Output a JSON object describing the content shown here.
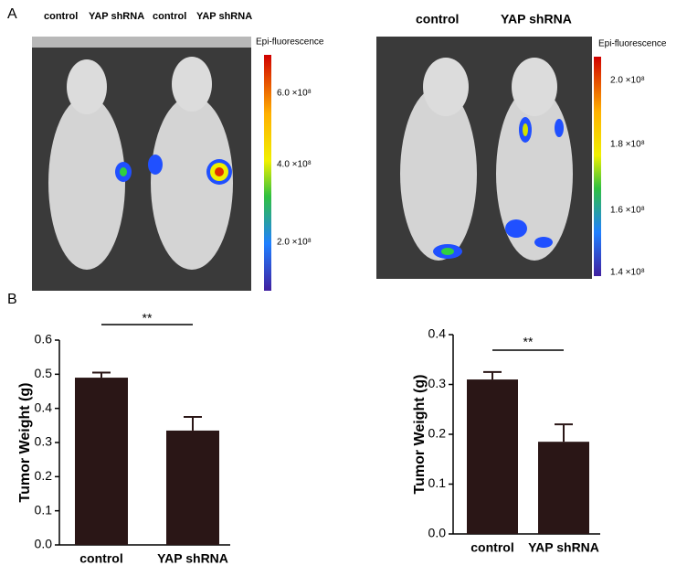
{
  "panel_labels": [
    "A",
    "B"
  ],
  "images": [
    {
      "labels": [
        "control",
        "YAP shRNA",
        "control",
        "YAP shRNA"
      ],
      "colorbar_title": "Epi-fluorescence",
      "colorbar_ticks": [
        "6.0 ×10⁸",
        "4.0 ×10⁸",
        "2.0 ×10⁸"
      ]
    },
    {
      "labels": [
        "control",
        "YAP shRNA"
      ],
      "colorbar_title": "Epi-fluorescence",
      "colorbar_ticks": [
        "2.0 ×10⁸",
        "1.8 ×10⁸",
        "1.6 ×10⁸",
        "1.4 ×10⁸"
      ]
    }
  ],
  "chart_data": [
    {
      "type": "bar",
      "ylabel": "Tumor Weight (g)",
      "annotation": "**",
      "categories": [
        "control",
        "YAP shRNA"
      ],
      "values": [
        0.49,
        0.335
      ],
      "errors": [
        0.015,
        0.04
      ],
      "color": "#2a1616",
      "ylim": [
        0,
        0.6
      ],
      "yticks": [
        {
          "value": 0,
          "label": "0.0"
        },
        0.1,
        0.2,
        0.3,
        0.4,
        0.5,
        0.6
      ]
    },
    {
      "type": "bar",
      "ylabel": "Tumor Weight (g)",
      "annotation": "**",
      "categories": [
        "control",
        "YAP shRNA"
      ],
      "values": [
        0.31,
        0.185
      ],
      "errors": [
        0.015,
        0.035
      ],
      "color": "#2a1616",
      "ylim": [
        0,
        0.4
      ],
      "yticks": [
        {
          "value": 0,
          "label": "0.0"
        },
        0.1,
        0.2,
        0.3,
        0.4
      ]
    }
  ]
}
